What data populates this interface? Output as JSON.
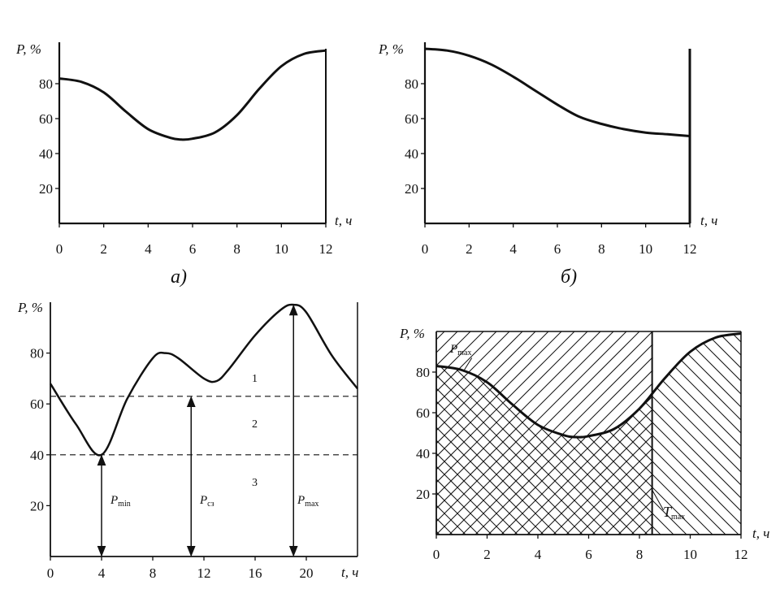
{
  "charts": [
    {
      "caption": "а)",
      "ylabel": "P, %",
      "xlabel": "t, ч",
      "x_ticks": [
        "0",
        "2",
        "4",
        "6",
        "8",
        "10",
        "12"
      ],
      "y_ticks": [
        "20",
        "40",
        "60",
        "80"
      ]
    },
    {
      "caption": "б)",
      "ylabel": "P, %",
      "xlabel": "t, ч",
      "x_ticks": [
        "0",
        "2",
        "4",
        "6",
        "8",
        "10",
        "12"
      ],
      "y_ticks": [
        "20",
        "40",
        "60",
        "80"
      ]
    },
    {
      "caption": "",
      "ylabel": "P, %",
      "xlabel": "t, ч",
      "x_ticks": [
        "0",
        "4",
        "8",
        "12",
        "16",
        "20"
      ],
      "y_ticks": [
        "20",
        "40",
        "60",
        "80"
      ],
      "zones": [
        "1",
        "2",
        "3"
      ],
      "arrows": [
        {
          "main": "P",
          "sub": "min"
        },
        {
          "main": "P",
          "sub": "cз"
        },
        {
          "main": "P",
          "sub": "max"
        }
      ]
    },
    {
      "caption": "",
      "ylabel": "P, %",
      "xlabel": "t, ч",
      "x_ticks": [
        "0",
        "2",
        "4",
        "6",
        "8",
        "10",
        "12"
      ],
      "y_ticks": [
        "20",
        "40",
        "60",
        "80"
      ],
      "pmax_label": {
        "main": "P",
        "sub": "max"
      },
      "tmax_label": {
        "main": "T",
        "sub": "max"
      }
    }
  ],
  "chart_data": [
    {
      "type": "line",
      "xlim": [
        0,
        12
      ],
      "ylim": [
        0,
        100
      ],
      "x": [
        0,
        1,
        2,
        3,
        4,
        5,
        5.5,
        6,
        7,
        8,
        9,
        10,
        11,
        12
      ],
      "y": [
        83,
        81,
        75,
        64,
        54,
        49,
        48,
        48.5,
        52,
        62,
        77,
        90,
        97,
        99
      ]
    },
    {
      "type": "line",
      "xlim": [
        0,
        12
      ],
      "ylim": [
        0,
        100
      ],
      "x": [
        0,
        1,
        2,
        3,
        4,
        5,
        6,
        7,
        8,
        9,
        10,
        11,
        12
      ],
      "y": [
        100,
        99,
        96,
        91,
        84,
        76,
        68,
        61,
        57,
        54,
        52,
        51,
        50
      ]
    },
    {
      "type": "line",
      "xlim": [
        0,
        24
      ],
      "ylim": [
        0,
        100
      ],
      "x": [
        0,
        2,
        4,
        6,
        8,
        9,
        10,
        12,
        13,
        14,
        16,
        18,
        19,
        20,
        22,
        24
      ],
      "y": [
        68,
        52,
        40,
        62,
        78,
        80,
        78,
        70,
        69,
        74,
        87,
        97,
        99,
        96,
        79,
        66
      ],
      "reference_lines": {
        "P_cz": 63,
        "P_min": 40
      },
      "min_point": {
        "x": 4,
        "y": 40
      },
      "max_point": {
        "x": 19,
        "y": 99
      },
      "cz_arrow_x": 11
    },
    {
      "type": "area",
      "xlim": [
        0,
        12
      ],
      "ylim": [
        0,
        100
      ],
      "x": [
        0,
        1,
        2,
        3,
        4,
        5,
        5.5,
        6,
        7,
        8,
        9,
        10,
        11,
        12
      ],
      "y": [
        83,
        81,
        75,
        64,
        54,
        49,
        48,
        48.5,
        52,
        62,
        77,
        90,
        97,
        99
      ],
      "T_max": 8.5
    }
  ]
}
